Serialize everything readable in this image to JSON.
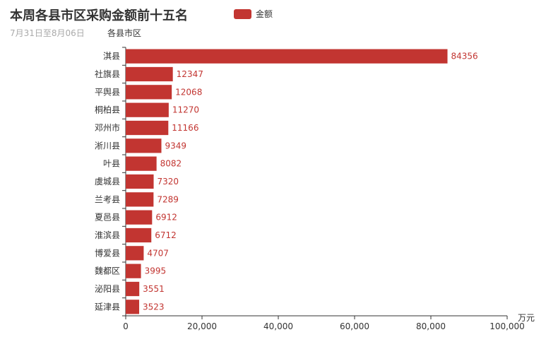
{
  "chart_data": {
    "type": "bar",
    "orientation": "horizontal",
    "title": "本周各县市区采购金额前十五名",
    "subtitle": "7月31日至8月06日",
    "ylabel": "各县市区",
    "xlabel": "万元",
    "categories": [
      "淇县",
      "社旗县",
      "平舆县",
      "桐柏县",
      "邓州市",
      "淅川县",
      "叶县",
      "虞城县",
      "兰考县",
      "夏邑县",
      "淮滨县",
      "博爱县",
      "魏都区",
      "泌阳县",
      "延津县"
    ],
    "series": [
      {
        "name": "金额",
        "values": [
          84356,
          12347,
          12068,
          11270,
          11166,
          9349,
          8082,
          7320,
          7289,
          6912,
          6712,
          4707,
          3995,
          3551,
          3523
        ]
      }
    ],
    "xlim": [
      0,
      100000
    ],
    "xticks": [
      0,
      20000,
      40000,
      60000,
      80000,
      100000
    ],
    "xtick_labels": [
      "0",
      "20,000",
      "40,000",
      "60,000",
      "80,000",
      "100,000"
    ],
    "legend": {
      "position": "top-center",
      "entries": [
        "金额"
      ]
    },
    "grid": false,
    "colors": {
      "bar": "#c23531",
      "axis": "#333333",
      "label": "#c23531"
    }
  }
}
